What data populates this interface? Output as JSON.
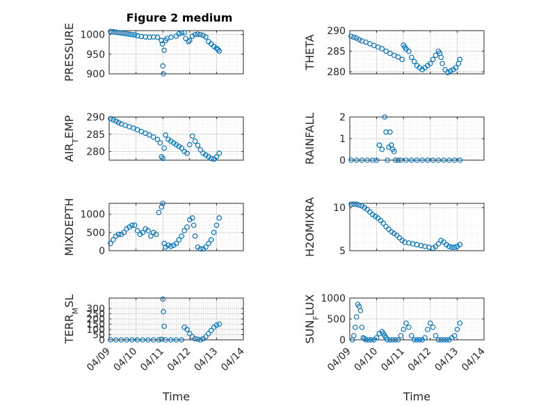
{
  "figure": {
    "title": "Figure 2 medium"
  },
  "chart_data": [
    {
      "type": "scatter",
      "ylabel": "PRESSURE",
      "ylim": [
        900,
        1010
      ],
      "yticks": [
        900,
        950,
        1000
      ],
      "x": [
        0.05,
        0.15,
        0.25,
        0.35,
        0.45,
        0.55,
        0.65,
        0.75,
        0.85,
        0.95,
        1.05,
        1.2,
        1.35,
        1.5,
        1.65,
        1.8,
        1.95,
        1.98,
        2.0,
        2.02,
        2.05,
        2.1,
        2.15,
        2.3,
        2.5,
        2.6,
        2.7,
        2.8,
        2.85,
        2.95,
        3.0,
        3.1,
        3.2,
        3.3,
        3.4,
        3.5,
        3.6,
        3.7,
        3.8,
        3.9,
        4.0,
        4.05,
        4.1
      ],
      "y": [
        1008,
        1007,
        1006,
        1005,
        1004,
        1003,
        1002,
        1001,
        1000,
        999,
        997,
        995,
        994,
        993,
        994,
        993,
        985,
        976,
        920,
        900,
        960,
        985,
        990,
        993,
        996,
        1002,
        1004,
        1005,
        990,
        982,
        985,
        996,
        1000,
        1001,
        1000,
        998,
        994,
        982,
        976,
        970,
        965,
        962,
        958
      ]
    },
    {
      "type": "scatter",
      "ylabel": "THETA",
      "ylim": [
        279.5,
        290
      ],
      "yticks": [
        280,
        285,
        290
      ],
      "x": [
        0.05,
        0.15,
        0.25,
        0.35,
        0.45,
        0.6,
        0.75,
        0.9,
        1.05,
        1.2,
        1.35,
        1.5,
        1.65,
        1.8,
        1.95,
        2.0,
        2.05,
        2.1,
        2.2,
        2.3,
        2.4,
        2.5,
        2.6,
        2.7,
        2.8,
        2.9,
        3.0,
        3.1,
        3.2,
        3.3,
        3.35,
        3.4,
        3.45,
        3.55,
        3.65,
        3.75,
        3.85,
        3.95,
        4.05,
        4.1
      ],
      "y": [
        288.6,
        288.4,
        288.2,
        287.8,
        287.5,
        287.2,
        286.8,
        286.4,
        286,
        285.6,
        285,
        284.5,
        284,
        283.6,
        283,
        286.5,
        286,
        285.5,
        285,
        283.5,
        282.5,
        281.5,
        281,
        280.5,
        281,
        281.5,
        282,
        283,
        284,
        285,
        284.5,
        283.5,
        282,
        280.5,
        279.8,
        280.2,
        280.5,
        281,
        282,
        283
      ]
    },
    {
      "type": "scatter",
      "ylabel": "AIR_TEMP",
      "ylim": [
        277.5,
        290
      ],
      "yticks": [
        280,
        285,
        290
      ],
      "x": [
        0.05,
        0.15,
        0.25,
        0.35,
        0.45,
        0.6,
        0.75,
        0.9,
        1.05,
        1.2,
        1.35,
        1.5,
        1.65,
        1.8,
        1.9,
        1.95,
        2.0,
        2.05,
        2.1,
        2.2,
        2.3,
        2.4,
        2.5,
        2.6,
        2.7,
        2.8,
        2.9,
        3.0,
        3.1,
        3.2,
        3.3,
        3.4,
        3.5,
        3.6,
        3.7,
        3.8,
        3.9,
        4.0,
        4.1
      ],
      "y": [
        289.5,
        289.2,
        288.8,
        288.4,
        288,
        287.6,
        287.2,
        286.8,
        286.3,
        285.8,
        285.3,
        284.8,
        284.2,
        283.5,
        282.5,
        278.5,
        278,
        281,
        284.8,
        283.5,
        283,
        282.5,
        282,
        281.5,
        281,
        280,
        279.5,
        282,
        284.5,
        283,
        281.8,
        280.5,
        279.5,
        279,
        278.5,
        278,
        277.8,
        278.5,
        279.5
      ]
    },
    {
      "type": "scatter",
      "ylabel": "RAINFALL",
      "ylim": [
        0,
        2
      ],
      "yticks": [
        0,
        1,
        2
      ],
      "x": [
        0.05,
        0.25,
        0.45,
        0.65,
        0.85,
        1.0,
        1.1,
        1.2,
        1.3,
        1.35,
        1.4,
        1.45,
        1.5,
        1.55,
        1.6,
        1.65,
        1.7,
        1.8,
        1.9,
        2.1,
        2.3,
        2.5,
        2.7,
        2.9,
        3.1,
        3.3,
        3.5,
        3.7,
        3.9,
        4.1
      ],
      "y": [
        0,
        0,
        0,
        0,
        0,
        0,
        0.7,
        0.5,
        2.0,
        1.3,
        0,
        0.6,
        1.3,
        0.7,
        0.5,
        0.4,
        0,
        0,
        0,
        0,
        0,
        0,
        0,
        0,
        0,
        0,
        0,
        0,
        0,
        0
      ]
    },
    {
      "type": "scatter",
      "ylabel": "MIXDEPTH",
      "ylim": [
        0,
        1300
      ],
      "yticks": [
        0,
        500,
        1000
      ],
      "x": [
        0.05,
        0.15,
        0.25,
        0.35,
        0.45,
        0.55,
        0.65,
        0.75,
        0.85,
        0.95,
        1.05,
        1.15,
        1.25,
        1.35,
        1.45,
        1.55,
        1.65,
        1.75,
        1.85,
        1.95,
        2.0,
        2.05,
        2.1,
        2.2,
        2.3,
        2.4,
        2.5,
        2.6,
        2.7,
        2.8,
        2.9,
        3.0,
        3.1,
        3.15,
        3.2,
        3.3,
        3.4,
        3.5,
        3.6,
        3.7,
        3.8,
        3.9,
        4.0,
        4.1
      ],
      "y": [
        200,
        300,
        400,
        450,
        450,
        500,
        600,
        650,
        700,
        700,
        550,
        450,
        500,
        600,
        550,
        400,
        500,
        450,
        1050,
        1200,
        1300,
        200,
        100,
        150,
        120,
        150,
        200,
        300,
        400,
        550,
        650,
        850,
        900,
        700,
        400,
        100,
        50,
        50,
        100,
        200,
        300,
        500,
        700,
        900
      ]
    },
    {
      "type": "scatter",
      "ylabel": "H2OMIXRA",
      "ylim": [
        5,
        10.5
      ],
      "yticks": [
        5,
        10
      ],
      "x": [
        0.05,
        0.15,
        0.25,
        0.35,
        0.45,
        0.55,
        0.65,
        0.75,
        0.85,
        0.95,
        1.05,
        1.15,
        1.25,
        1.35,
        1.45,
        1.55,
        1.65,
        1.75,
        1.85,
        1.95,
        2.05,
        2.2,
        2.35,
        2.5,
        2.65,
        2.8,
        2.95,
        3.1,
        3.2,
        3.3,
        3.4,
        3.5,
        3.6,
        3.7,
        3.8,
        3.9,
        4.0,
        4.1
      ],
      "y": [
        10.4,
        10.4,
        10.4,
        10.3,
        10.2,
        10,
        9.8,
        9.5,
        9.2,
        9,
        8.8,
        8.5,
        8.2,
        7.8,
        7.5,
        7.2,
        7,
        6.8,
        6.5,
        6.2,
        6,
        5.9,
        5.8,
        5.7,
        5.6,
        5.5,
        5.4,
        5.3,
        5.5,
        5.8,
        6.2,
        6,
        5.7,
        5.5,
        5.4,
        5.4,
        5.5,
        5.7
      ]
    },
    {
      "type": "scatter",
      "ylabel": "TERR_MSL",
      "ylim": [
        0,
        400
      ],
      "yticks": [
        0,
        50,
        100,
        150,
        200,
        250,
        300
      ],
      "x": [
        0.05,
        0.25,
        0.45,
        0.65,
        0.85,
        1.05,
        1.25,
        1.45,
        1.65,
        1.85,
        1.95,
        2.0,
        2.02,
        2.05,
        2.1,
        2.3,
        2.5,
        2.7,
        2.8,
        2.9,
        3.0,
        3.1,
        3.2,
        3.3,
        3.4,
        3.5,
        3.6,
        3.7,
        3.8,
        3.9,
        4.0,
        4.1
      ],
      "y": [
        0,
        0,
        0,
        0,
        0,
        0,
        0,
        0,
        0,
        0,
        5,
        390,
        270,
        130,
        0,
        0,
        0,
        0,
        120,
        100,
        60,
        30,
        10,
        5,
        0,
        10,
        30,
        60,
        90,
        120,
        140,
        150
      ]
    },
    {
      "type": "scatter",
      "ylabel": "SUN_FLUX",
      "ylim": [
        0,
        1000
      ],
      "yticks": [
        0,
        500,
        1000
      ],
      "x": [
        0.1,
        0.15,
        0.2,
        0.25,
        0.3,
        0.35,
        0.4,
        0.45,
        0.5,
        0.55,
        0.6,
        0.7,
        0.8,
        0.9,
        1.0,
        1.1,
        1.2,
        1.25,
        1.3,
        1.35,
        1.4,
        1.5,
        1.6,
        1.7,
        1.8,
        1.9,
        2.0,
        2.1,
        2.2,
        2.3,
        2.4,
        2.5,
        2.6,
        2.7,
        2.8,
        2.9,
        3.0,
        3.1,
        3.2,
        3.3,
        3.4,
        3.5,
        3.6,
        3.7,
        3.8,
        3.9,
        4.0,
        4.1
      ],
      "y": [
        0,
        100,
        300,
        550,
        850,
        800,
        700,
        300,
        50,
        30,
        0,
        0,
        0,
        0,
        50,
        150,
        200,
        150,
        100,
        50,
        0,
        0,
        0,
        0,
        0,
        100,
        250,
        400,
        300,
        100,
        0,
        0,
        0,
        0,
        50,
        250,
        400,
        300,
        100,
        0,
        0,
        0,
        0,
        0,
        50,
        100,
        250,
        400
      ]
    }
  ],
  "x_axis": {
    "label": "Time",
    "xlim": [
      0,
      5
    ],
    "tick_values": [
      0,
      1,
      2,
      3,
      4,
      5
    ],
    "tick_labels": [
      "04/09",
      "04/10",
      "04/11",
      "04/12",
      "04/13",
      "04/14"
    ]
  },
  "colors": {
    "marker": "#0072BD",
    "axes": "#262626",
    "grid": "#dfdfdf"
  }
}
